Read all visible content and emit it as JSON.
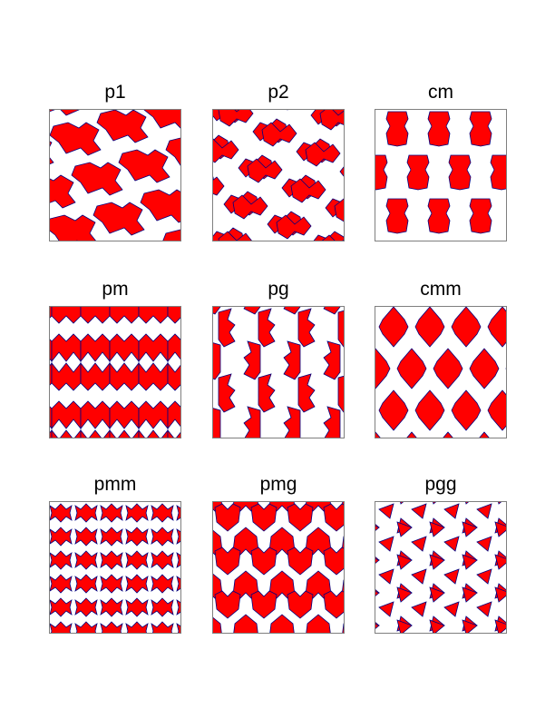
{
  "colors": {
    "fill": "#ff0000",
    "background": "#ffffff",
    "edge": "#000080",
    "frame": "#7f7f7f"
  },
  "groups": [
    {
      "name": "p1",
      "label": "p1"
    },
    {
      "name": "p2",
      "label": "p2"
    },
    {
      "name": "cm",
      "label": "cm"
    },
    {
      "name": "pm",
      "label": "pm"
    },
    {
      "name": "pg",
      "label": "pg"
    },
    {
      "name": "cmm",
      "label": "cmm"
    },
    {
      "name": "pmm",
      "label": "pmm"
    },
    {
      "name": "pmg",
      "label": "pmg"
    },
    {
      "name": "pgg",
      "label": "pgg"
    }
  ]
}
